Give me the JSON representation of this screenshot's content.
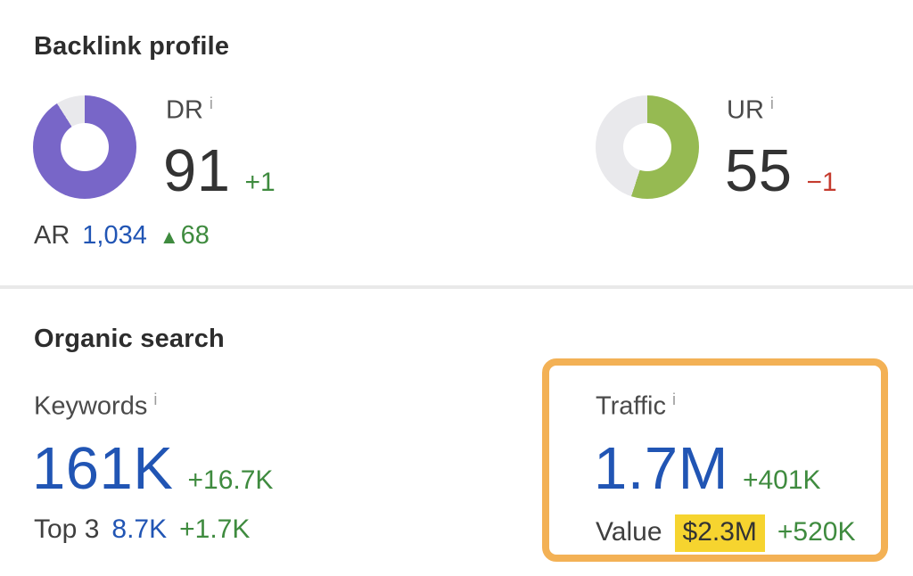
{
  "colors": {
    "accent_blue": "#2155b4",
    "positive_green": "#3f8b3f",
    "negative_red": "#c53b2e",
    "dr_donut": "#7866c8",
    "ur_donut": "#96ba52",
    "donut_track": "#e9e9ec",
    "highlight_border": "#f3b155",
    "value_highlight": "#f6d42f"
  },
  "backlink_profile": {
    "title": "Backlink profile",
    "dr": {
      "label": "DR",
      "info_icon": "i",
      "value": "91",
      "delta": "+1",
      "percent": 91,
      "color": "#7866c8"
    },
    "ur": {
      "label": "UR",
      "info_icon": "i",
      "value": "55",
      "delta": "−1",
      "percent": 55,
      "color": "#96ba52"
    },
    "ar": {
      "label": "AR",
      "value": "1,034",
      "delta_arrow": "▲",
      "delta": "68"
    }
  },
  "organic_search": {
    "title": "Organic search",
    "keywords": {
      "label": "Keywords",
      "info_icon": "i",
      "value": "161K",
      "delta": "+16.7K"
    },
    "top3": {
      "label": "Top 3",
      "value": "8.7K",
      "delta": "+1.7K"
    },
    "traffic": {
      "label": "Traffic",
      "info_icon": "i",
      "value": "1.7M",
      "delta": "+401K"
    },
    "traffic_value": {
      "label": "Value",
      "value": "$2.3M",
      "delta": "+520K"
    }
  }
}
